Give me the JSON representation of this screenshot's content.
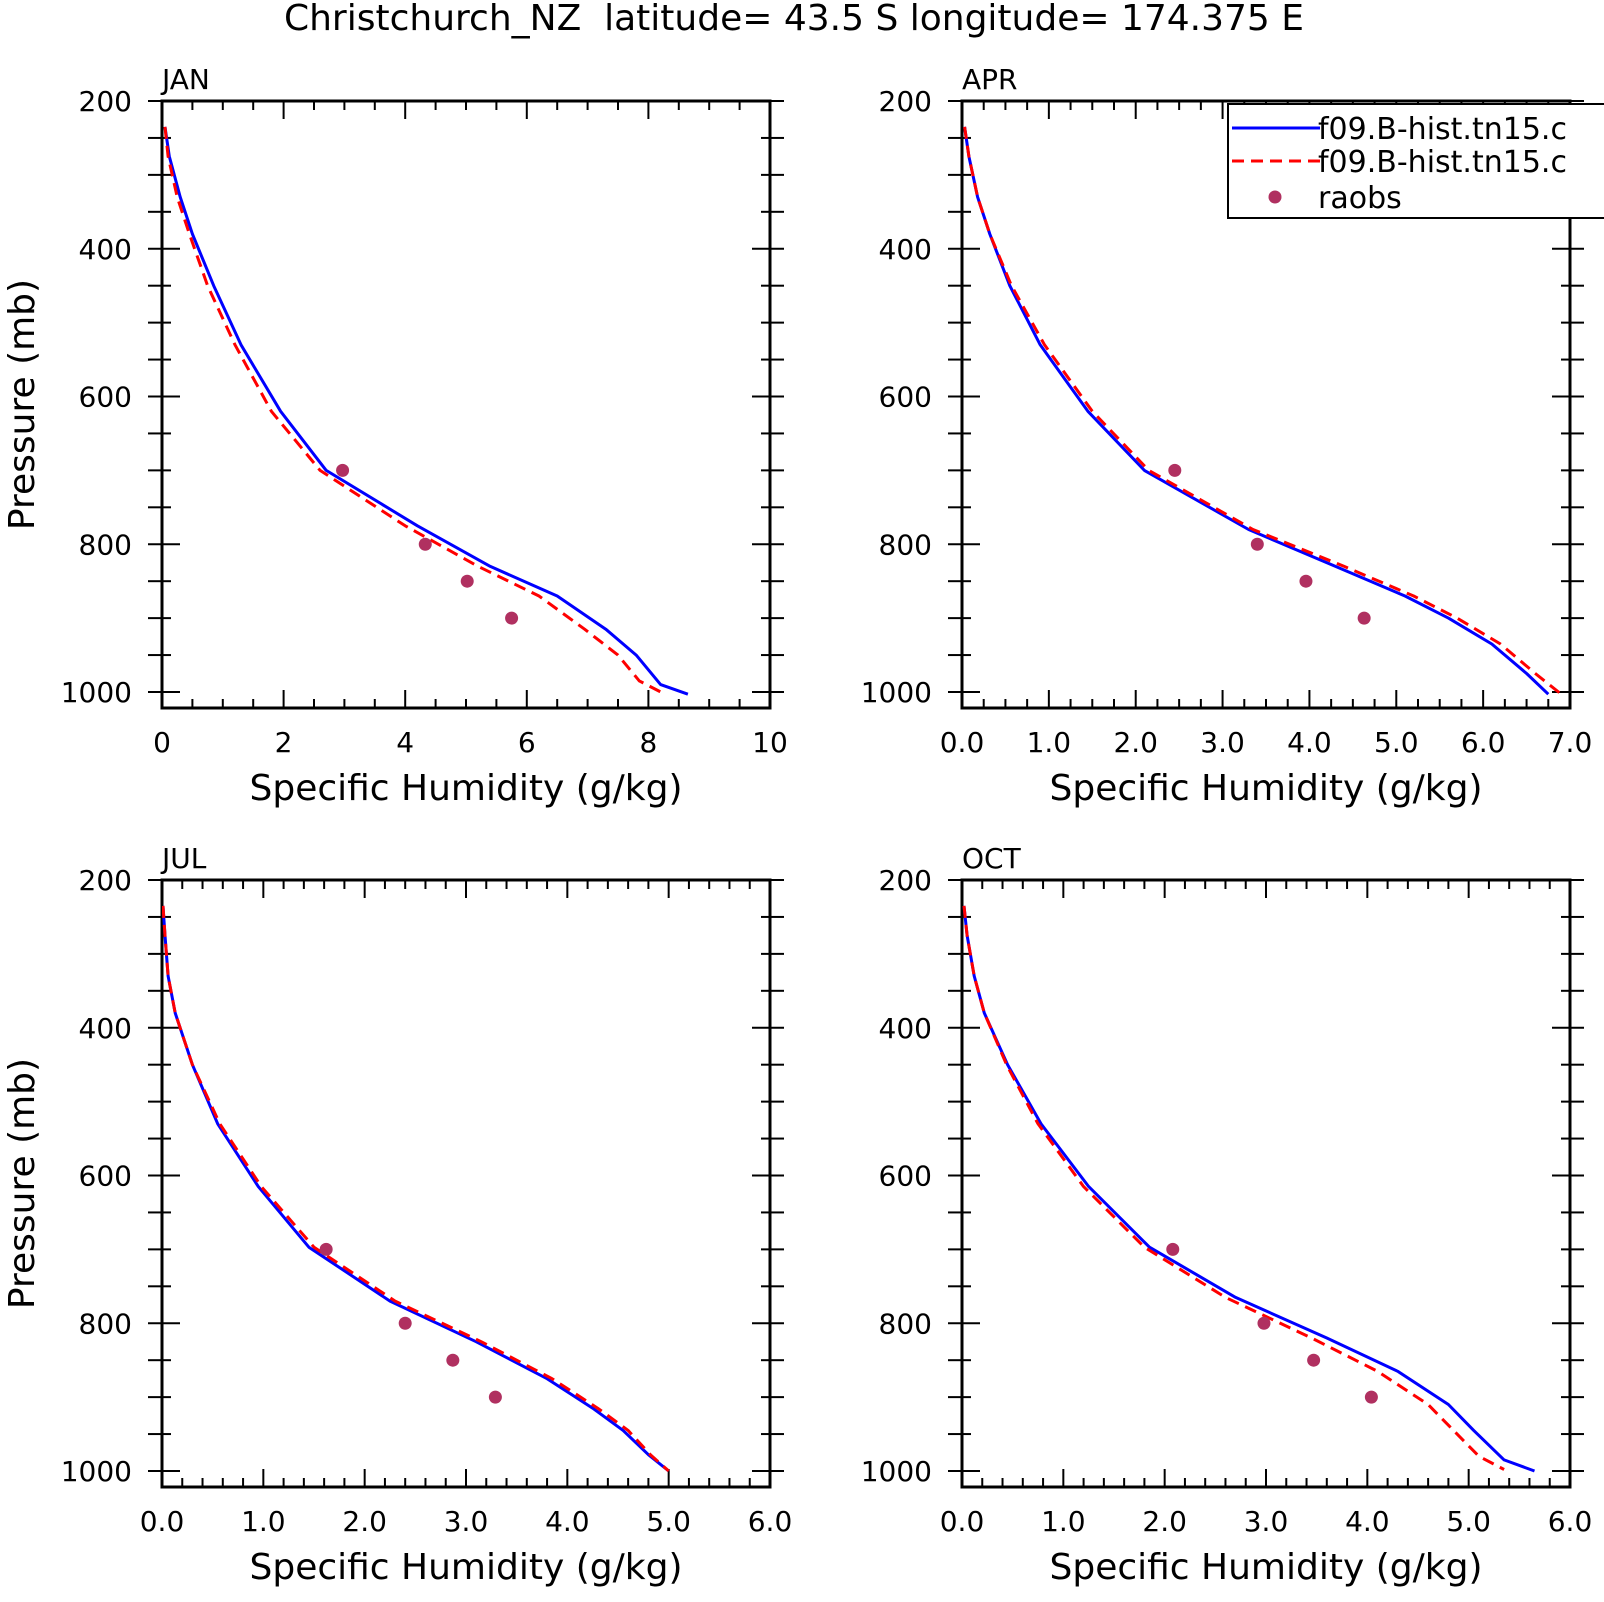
{
  "title": "Christchurch_NZ  latitude= 43.5 S longitude= 174.375 E",
  "legend": {
    "entries": [
      {
        "label": "f09.B-hist.tn15.c",
        "style": "solid",
        "color": "#0000ff"
      },
      {
        "label": "f09.B-hist.tn15.c",
        "style": "dashed",
        "color": "#ff0000"
      },
      {
        "label": "raobs",
        "style": "marker",
        "color": "#b03060"
      }
    ]
  },
  "colors": {
    "series_solid": "#0000ff",
    "series_dashed": "#ff0000",
    "raobs": "#b03060"
  },
  "chart_data": [
    {
      "type": "line",
      "panel_title": "JAN",
      "xlabel": "Specific Humidity (g/kg)",
      "ylabel": "Pressure (mb)",
      "xlim": [
        0,
        10
      ],
      "ylim": [
        200,
        1000
      ],
      "y_inverted": true,
      "xticks": [
        0,
        2,
        4,
        6,
        8,
        10
      ],
      "xtick_labels": [
        "0",
        "2",
        "4",
        "6",
        "8",
        "10"
      ],
      "x_minor_step": 0.5,
      "yticks": [
        200,
        400,
        600,
        800,
        1000
      ],
      "ytick_labels": [
        "200",
        "400",
        "600",
        "800",
        "1000"
      ],
      "series": [
        {
          "style": "solid",
          "x": [
            0.05,
            0.12,
            0.3,
            0.5,
            0.85,
            1.3,
            1.95,
            2.7,
            4.2,
            5.4,
            6.5,
            7.3,
            7.8,
            8.2,
            8.65
          ],
          "y": [
            235,
            275,
            330,
            380,
            450,
            530,
            620,
            700,
            775,
            830,
            870,
            915,
            950,
            990,
            1003
          ]
        },
        {
          "style": "dashed",
          "x": [
            0.05,
            0.1,
            0.25,
            0.45,
            0.75,
            1.2,
            1.8,
            2.6,
            4.0,
            5.2,
            6.2,
            6.95,
            7.5,
            7.85,
            8.25
          ],
          "y": [
            235,
            275,
            330,
            380,
            450,
            530,
            620,
            700,
            775,
            830,
            870,
            915,
            950,
            985,
            1002
          ]
        }
      ],
      "raobs": {
        "x": [
          2.97,
          4.33,
          5.02,
          5.75
        ],
        "y": [
          700,
          800,
          850,
          900
        ]
      }
    },
    {
      "type": "line",
      "panel_title": "APR",
      "xlabel": "Specific Humidity (g/kg)",
      "ylabel": "",
      "xlim": [
        0,
        7
      ],
      "ylim": [
        200,
        1000
      ],
      "y_inverted": true,
      "xticks": [
        0,
        1,
        2,
        3,
        4,
        5,
        6,
        7
      ],
      "xtick_labels": [
        "0.0",
        "1.0",
        "2.0",
        "3.0",
        "4.0",
        "5.0",
        "6.0",
        "7.0"
      ],
      "x_minor_step": 0.25,
      "yticks": [
        200,
        400,
        600,
        800,
        1000
      ],
      "ytick_labels": [
        "200",
        "400",
        "600",
        "800",
        "1000"
      ],
      "series": [
        {
          "style": "solid",
          "x": [
            0.03,
            0.08,
            0.18,
            0.32,
            0.55,
            0.9,
            1.45,
            2.1,
            3.3,
            4.3,
            5.1,
            5.6,
            6.1,
            6.5,
            6.75
          ],
          "y": [
            235,
            275,
            330,
            380,
            450,
            530,
            620,
            700,
            780,
            830,
            870,
            900,
            935,
            975,
            1003
          ]
        },
        {
          "style": "dashed",
          "x": [
            0.03,
            0.08,
            0.18,
            0.32,
            0.57,
            0.95,
            1.5,
            2.15,
            3.35,
            4.4,
            5.2,
            5.7,
            6.2,
            6.6,
            6.9
          ],
          "y": [
            235,
            275,
            330,
            380,
            450,
            530,
            620,
            700,
            780,
            830,
            870,
            900,
            935,
            975,
            1003
          ]
        }
      ],
      "raobs": {
        "x": [
          2.45,
          3.4,
          3.96,
          4.63
        ],
        "y": [
          700,
          800,
          850,
          900
        ]
      }
    },
    {
      "type": "line",
      "panel_title": "JUL",
      "xlabel": "Specific Humidity (g/kg)",
      "ylabel": "Pressure (mb)",
      "xlim": [
        0,
        6
      ],
      "ylim": [
        200,
        1000
      ],
      "y_inverted": true,
      "xticks": [
        0,
        1,
        2,
        3,
        4,
        5,
        6
      ],
      "xtick_labels": [
        "0.0",
        "1.0",
        "2.0",
        "3.0",
        "4.0",
        "5.0",
        "6.0"
      ],
      "x_minor_step": 0.2,
      "yticks": [
        200,
        400,
        600,
        800,
        1000
      ],
      "ytick_labels": [
        "200",
        "400",
        "600",
        "800",
        "1000"
      ],
      "series": [
        {
          "style": "solid",
          "x": [
            0.01,
            0.03,
            0.06,
            0.13,
            0.3,
            0.55,
            0.95,
            1.45,
            2.25,
            3.1,
            3.8,
            4.25,
            4.55,
            4.8,
            5.0
          ],
          "y": [
            235,
            275,
            330,
            380,
            450,
            530,
            615,
            697,
            770,
            825,
            875,
            915,
            945,
            978,
            1000
          ]
        },
        {
          "style": "dashed",
          "x": [
            0.01,
            0.03,
            0.06,
            0.13,
            0.3,
            0.57,
            0.98,
            1.5,
            2.3,
            3.15,
            3.85,
            4.3,
            4.6,
            4.82,
            5.0
          ],
          "y": [
            235,
            275,
            330,
            380,
            450,
            530,
            615,
            697,
            770,
            825,
            875,
            915,
            945,
            978,
            1000
          ]
        }
      ],
      "raobs": {
        "x": [
          1.62,
          2.4,
          2.87,
          3.29
        ],
        "y": [
          700,
          800,
          850,
          900
        ]
      }
    },
    {
      "type": "line",
      "panel_title": "OCT",
      "xlabel": "Specific Humidity (g/kg)",
      "ylabel": "",
      "xlim": [
        0,
        6
      ],
      "ylim": [
        200,
        1000
      ],
      "y_inverted": true,
      "xticks": [
        0,
        1,
        2,
        3,
        4,
        5,
        6
      ],
      "xtick_labels": [
        "0.0",
        "1.0",
        "2.0",
        "3.0",
        "4.0",
        "5.0",
        "6.0"
      ],
      "x_minor_step": 0.2,
      "yticks": [
        200,
        400,
        600,
        800,
        1000
      ],
      "ytick_labels": [
        "200",
        "400",
        "600",
        "800",
        "1000"
      ],
      "series": [
        {
          "style": "solid",
          "x": [
            0.02,
            0.05,
            0.12,
            0.22,
            0.45,
            0.78,
            1.25,
            1.85,
            2.7,
            3.6,
            4.3,
            4.8,
            5.05,
            5.35,
            5.65
          ],
          "y": [
            235,
            275,
            330,
            380,
            450,
            530,
            615,
            697,
            765,
            820,
            865,
            910,
            945,
            985,
            1000
          ]
        },
        {
          "style": "dashed",
          "x": [
            0.02,
            0.05,
            0.12,
            0.22,
            0.44,
            0.75,
            1.2,
            1.8,
            2.6,
            3.45,
            4.1,
            4.6,
            4.85,
            5.1,
            5.35
          ],
          "y": [
            235,
            275,
            330,
            380,
            450,
            530,
            615,
            697,
            765,
            820,
            865,
            910,
            945,
            980,
            998
          ]
        }
      ],
      "raobs": {
        "x": [
          2.08,
          2.98,
          3.47,
          4.04
        ],
        "y": [
          700,
          800,
          850,
          900
        ]
      }
    }
  ]
}
